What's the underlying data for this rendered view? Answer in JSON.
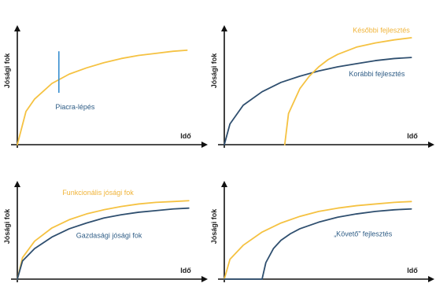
{
  "colors": {
    "yellow": "#f5c242",
    "blue": "#2f4f6f",
    "marker": "#3a8fd0",
    "axis": "#111111",
    "text_yellow": "#f0b43a",
    "text_blue": "#2f5d86"
  },
  "chart_data": [
    {
      "type": "line",
      "xlabel": "Idő",
      "ylabel": "Jósági fok",
      "xlim": [
        0,
        10
      ],
      "ylim": [
        0,
        10
      ],
      "series": [
        {
          "color": "yellow",
          "x": [
            0,
            0.5,
            1,
            2,
            3,
            4,
            5,
            6,
            7,
            8,
            9,
            9.8
          ],
          "y": [
            0,
            3.2,
            4.4,
            5.9,
            6.8,
            7.4,
            7.9,
            8.3,
            8.6,
            8.8,
            9.0,
            9.1
          ]
        }
      ],
      "annotations": [
        {
          "text": "Piacra-lépés",
          "x": 2.2,
          "y": 3.4,
          "color": "text_blue"
        }
      ],
      "marker_line": {
        "x": 2.4,
        "y": [
          5.0,
          9.0
        ]
      }
    },
    {
      "type": "line",
      "xlabel": "Idő",
      "ylabel": "Jósági fok",
      "xlim": [
        0,
        10
      ],
      "ylim": [
        0,
        10
      ],
      "series": [
        {
          "name": "Korábbi fejlesztés",
          "color": "blue",
          "x": [
            0,
            0.3,
            1,
            2,
            3,
            4,
            5,
            6,
            7,
            8,
            9,
            9.9
          ],
          "y": [
            0,
            2.0,
            3.8,
            5.1,
            6.0,
            6.6,
            7.1,
            7.5,
            7.8,
            8.1,
            8.3,
            8.4
          ]
        },
        {
          "name": "Későbbi fejlesztés",
          "color": "yellow",
          "x": [
            3.2,
            3.4,
            4,
            4.5,
            5,
            5.5,
            6,
            7,
            8,
            9,
            9.9
          ],
          "y": [
            0,
            3.0,
            5.4,
            6.6,
            7.5,
            8.2,
            8.7,
            9.4,
            9.8,
            10.1,
            10.3
          ]
        }
      ],
      "annotations": [
        {
          "text": "Későbbi fejlesztés",
          "x": 6.8,
          "y": 10.8,
          "color": "text_yellow"
        },
        {
          "text": "Korábbi fejlesztés",
          "x": 6.6,
          "y": 6.6,
          "color": "text_blue"
        }
      ]
    },
    {
      "type": "line",
      "xlabel": "Idő",
      "ylabel": "Jósági fok",
      "xlim": [
        0,
        10
      ],
      "ylim": [
        0,
        10
      ],
      "series": [
        {
          "name": "Funkcionális jósági fok",
          "color": "yellow",
          "x": [
            0,
            0.3,
            1,
            2,
            3,
            4,
            5,
            6,
            7,
            8,
            9,
            9.9
          ],
          "y": [
            0,
            2.6,
            4.6,
            6.2,
            7.2,
            7.9,
            8.4,
            8.8,
            9.1,
            9.3,
            9.4,
            9.5
          ]
        },
        {
          "name": "Gazdasági jósági fok",
          "color": "blue",
          "x": [
            0,
            0.3,
            1,
            2,
            3,
            4,
            5,
            6,
            7,
            8,
            9,
            9.9
          ],
          "y": [
            0,
            2.2,
            3.7,
            5.1,
            6.1,
            6.8,
            7.4,
            7.8,
            8.1,
            8.3,
            8.5,
            8.6
          ]
        }
      ],
      "annotations": [
        {
          "text": "Funkcionális jósági fok",
          "x": 2.6,
          "y": 10.2,
          "color": "text_yellow"
        },
        {
          "text": "Gazdasági jósági fok",
          "x": 3.4,
          "y": 5.0,
          "color": "text_blue"
        }
      ]
    },
    {
      "type": "line",
      "xlabel": "Idő",
      "ylabel": "Jósági fok",
      "xlim": [
        0,
        10
      ],
      "ylim": [
        0,
        10
      ],
      "series": [
        {
          "color": "yellow",
          "x": [
            0,
            0.3,
            1,
            2,
            3,
            4,
            5,
            6,
            7,
            8,
            9,
            9.9
          ],
          "y": [
            0,
            2.4,
            4.1,
            5.7,
            6.8,
            7.6,
            8.2,
            8.6,
            8.9,
            9.1,
            9.3,
            9.4
          ]
        },
        {
          "name": "„Követő” fejlesztés",
          "color": "blue",
          "x": [
            0,
            2.0,
            2.2,
            2.6,
            3,
            3.5,
            4,
            5,
            6,
            7,
            8,
            9,
            9.9
          ],
          "y": [
            0,
            0,
            2.0,
            3.7,
            4.7,
            5.5,
            6.1,
            6.9,
            7.5,
            7.9,
            8.2,
            8.4,
            8.5
          ]
        }
      ],
      "annotations": [
        {
          "text": "„Követő” fejlesztés",
          "x": 5.8,
          "y": 5.2,
          "color": "text_blue"
        }
      ]
    }
  ]
}
